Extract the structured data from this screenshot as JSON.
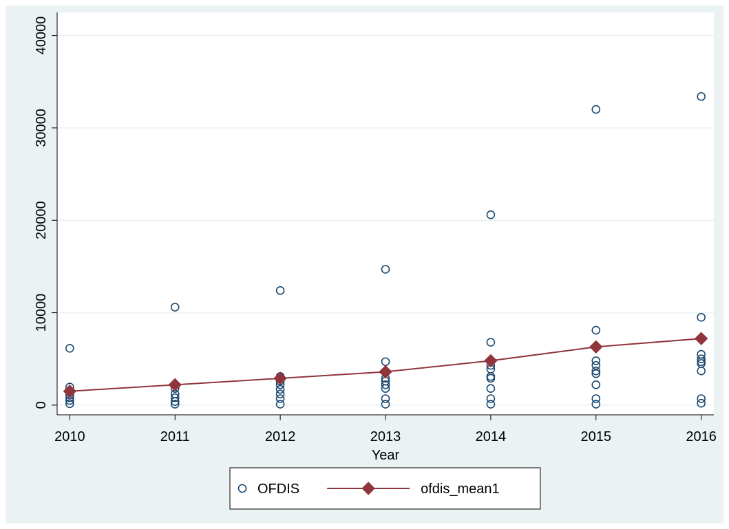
{
  "chart_data": {
    "type": "scatter",
    "x_label": "Year",
    "xlim": [
      2009.88,
      2016.12
    ],
    "xticks": [
      2010,
      2011,
      2012,
      2013,
      2014,
      2015,
      2016
    ],
    "ylim": [
      -1050,
      42500
    ],
    "yticks": [
      0,
      10000,
      20000,
      30000,
      40000
    ],
    "grid": true,
    "legend": "bottom",
    "series": [
      {
        "name": "OFDIS",
        "type": "scatter",
        "color": "#1a476f",
        "x": [
          2010,
          2010,
          2010,
          2010,
          2010,
          2010,
          2010,
          2011,
          2011,
          2011,
          2011,
          2011,
          2011,
          2011,
          2012,
          2012,
          2012,
          2012,
          2012,
          2012,
          2012,
          2012,
          2012,
          2013,
          2013,
          2013,
          2013,
          2013,
          2013,
          2013,
          2013,
          2014,
          2014,
          2014,
          2014,
          2014,
          2014,
          2014,
          2014,
          2014,
          2015,
          2015,
          2015,
          2015,
          2015,
          2015,
          2015,
          2015,
          2015,
          2016,
          2016,
          2016,
          2016,
          2016,
          2016,
          2016,
          2016,
          2016
        ],
        "values": [
          6150,
          1950,
          1450,
          1100,
          800,
          500,
          150,
          10600,
          2200,
          1800,
          1200,
          800,
          400,
          100,
          12400,
          3100,
          2900,
          2600,
          2200,
          1700,
          1200,
          700,
          100,
          14700,
          4700,
          2900,
          2600,
          2200,
          1800,
          700,
          100,
          20600,
          6800,
          4300,
          3900,
          3100,
          2900,
          1800,
          700,
          100,
          32000,
          8100,
          4800,
          4300,
          3700,
          3400,
          2200,
          700,
          100,
          33400,
          9500,
          5500,
          5000,
          4700,
          4500,
          3700,
          700,
          200
        ]
      },
      {
        "name": "ofdis_mean1",
        "type": "line",
        "color": "#90353b",
        "x": [
          2010,
          2011,
          2012,
          2013,
          2014,
          2015,
          2016
        ],
        "values": [
          1500,
          2200,
          2900,
          3600,
          4800,
          6300,
          7200
        ]
      }
    ]
  }
}
